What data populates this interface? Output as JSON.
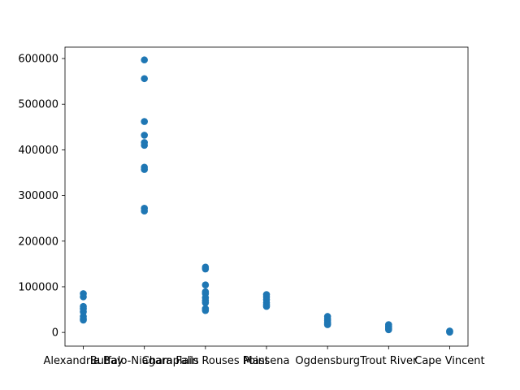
{
  "colors": {
    "point": "#1f77b4",
    "axis": "#000000",
    "background": "#ffffff"
  },
  "chart_data": {
    "type": "scatter",
    "title": "",
    "xlabel": "",
    "ylabel": "",
    "grid": false,
    "categories": [
      "Alexandria Bay",
      "Buffalo-Niagara Falls",
      "Champlain Rouses Point",
      "Massena",
      "Ogdensburg",
      "Trout River",
      "Cape Vincent"
    ],
    "ylim": [
      -30000,
      625000
    ],
    "yticks": [
      0,
      100000,
      200000,
      300000,
      400000,
      500000,
      600000
    ],
    "ytick_labels": [
      "0",
      "100000",
      "200000",
      "300000",
      "400000",
      "500000",
      "600000"
    ],
    "series": [
      {
        "points": [
          {
            "x": "Alexandria Bay",
            "y": 85000
          },
          {
            "x": "Alexandria Bay",
            "y": 78000
          },
          {
            "x": "Alexandria Bay",
            "y": 57000
          },
          {
            "x": "Alexandria Bay",
            "y": 52000
          },
          {
            "x": "Alexandria Bay",
            "y": 45000
          },
          {
            "x": "Alexandria Bay",
            "y": 35000
          },
          {
            "x": "Alexandria Bay",
            "y": 30000
          },
          {
            "x": "Alexandria Bay",
            "y": 27000
          },
          {
            "x": "Buffalo-Niagara Falls",
            "y": 597000
          },
          {
            "x": "Buffalo-Niagara Falls",
            "y": 556000
          },
          {
            "x": "Buffalo-Niagara Falls",
            "y": 462000
          },
          {
            "x": "Buffalo-Niagara Falls",
            "y": 432000
          },
          {
            "x": "Buffalo-Niagara Falls",
            "y": 416000
          },
          {
            "x": "Buffalo-Niagara Falls",
            "y": 410000
          },
          {
            "x": "Buffalo-Niagara Falls",
            "y": 362000
          },
          {
            "x": "Buffalo-Niagara Falls",
            "y": 357000
          },
          {
            "x": "Buffalo-Niagara Falls",
            "y": 272000
          },
          {
            "x": "Buffalo-Niagara Falls",
            "y": 266000
          },
          {
            "x": "Champlain Rouses Point",
            "y": 143000
          },
          {
            "x": "Champlain Rouses Point",
            "y": 139000
          },
          {
            "x": "Champlain Rouses Point",
            "y": 104000
          },
          {
            "x": "Champlain Rouses Point",
            "y": 89000
          },
          {
            "x": "Champlain Rouses Point",
            "y": 85000
          },
          {
            "x": "Champlain Rouses Point",
            "y": 76000
          },
          {
            "x": "Champlain Rouses Point",
            "y": 70000
          },
          {
            "x": "Champlain Rouses Point",
            "y": 65000
          },
          {
            "x": "Champlain Rouses Point",
            "y": 52000
          },
          {
            "x": "Champlain Rouses Point",
            "y": 48000
          },
          {
            "x": "Massena",
            "y": 83000
          },
          {
            "x": "Massena",
            "y": 78000
          },
          {
            "x": "Massena",
            "y": 72000
          },
          {
            "x": "Massena",
            "y": 65000
          },
          {
            "x": "Massena",
            "y": 60000
          },
          {
            "x": "Massena",
            "y": 57000
          },
          {
            "x": "Ogdensburg",
            "y": 35000
          },
          {
            "x": "Ogdensburg",
            "y": 30000
          },
          {
            "x": "Ogdensburg",
            "y": 26000
          },
          {
            "x": "Ogdensburg",
            "y": 22000
          },
          {
            "x": "Ogdensburg",
            "y": 19000
          },
          {
            "x": "Ogdensburg",
            "y": 17000
          },
          {
            "x": "Trout River",
            "y": 17000
          },
          {
            "x": "Trout River",
            "y": 14000
          },
          {
            "x": "Trout River",
            "y": 11000
          },
          {
            "x": "Trout River",
            "y": 8000
          },
          {
            "x": "Trout River",
            "y": 6000
          },
          {
            "x": "Cape Vincent",
            "y": 3000
          },
          {
            "x": "Cape Vincent",
            "y": 1500
          },
          {
            "x": "Cape Vincent",
            "y": 500
          }
        ]
      }
    ]
  }
}
